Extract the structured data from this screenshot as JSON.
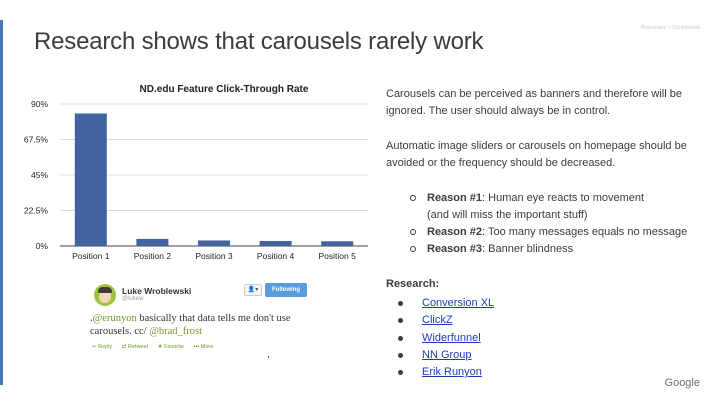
{
  "slide": {
    "title": "Research shows that carousels rarely work",
    "confidential": "Proprietary + Confidential",
    "logo_text": "Google",
    "accent_color": "#4a78b5"
  },
  "chart_data": {
    "type": "bar",
    "title": "ND.edu Feature Click-Through Rate",
    "categories": [
      "Position 1",
      "Position 2",
      "Position 3",
      "Position 4",
      "Position 5"
    ],
    "values": [
      84,
      4.5,
      3.5,
      3.2,
      3.0
    ],
    "ylim": [
      0,
      90
    ],
    "yticks": [
      0,
      22.5,
      45,
      67.5,
      90
    ],
    "ytick_labels": [
      "0%",
      "22.5%",
      "45%",
      "67.5%",
      "90%"
    ],
    "grid": true,
    "bar_color": "#41649f"
  },
  "tweet": {
    "name": "Luke Wroblewski",
    "handle": "@lukew",
    "person_button": "👤▾",
    "follow_label": "Following",
    "text_prefix": ".",
    "mention1": "@erunyon",
    "text_mid": " basically that data tells me don't use carousels. cc/ ",
    "mention2": "@brad_frost",
    "actions": [
      "Reply",
      "Retweet",
      "Favorite",
      "More"
    ]
  },
  "content": {
    "para1": "Carousels can be perceived as banners and therefore will be ignored. The user should always be in control.",
    "para2": "Automatic image sliders or carousels on homepage should be avoided or the frequency should be decreased.",
    "reasons": [
      {
        "label": "Reason #1",
        "text": ": Human eye reacts to movement",
        "text2": "(and will miss the important stuff)"
      },
      {
        "label": "Reason #2",
        "text": ": Too many messages equals no message"
      },
      {
        "label": "Reason #3",
        "text": ": Banner blindness"
      }
    ],
    "research_heading": "Research:",
    "links": [
      "Conversion XL",
      "ClickZ",
      "Widerfunnel",
      "NN Group",
      "Erik Runyon"
    ]
  }
}
